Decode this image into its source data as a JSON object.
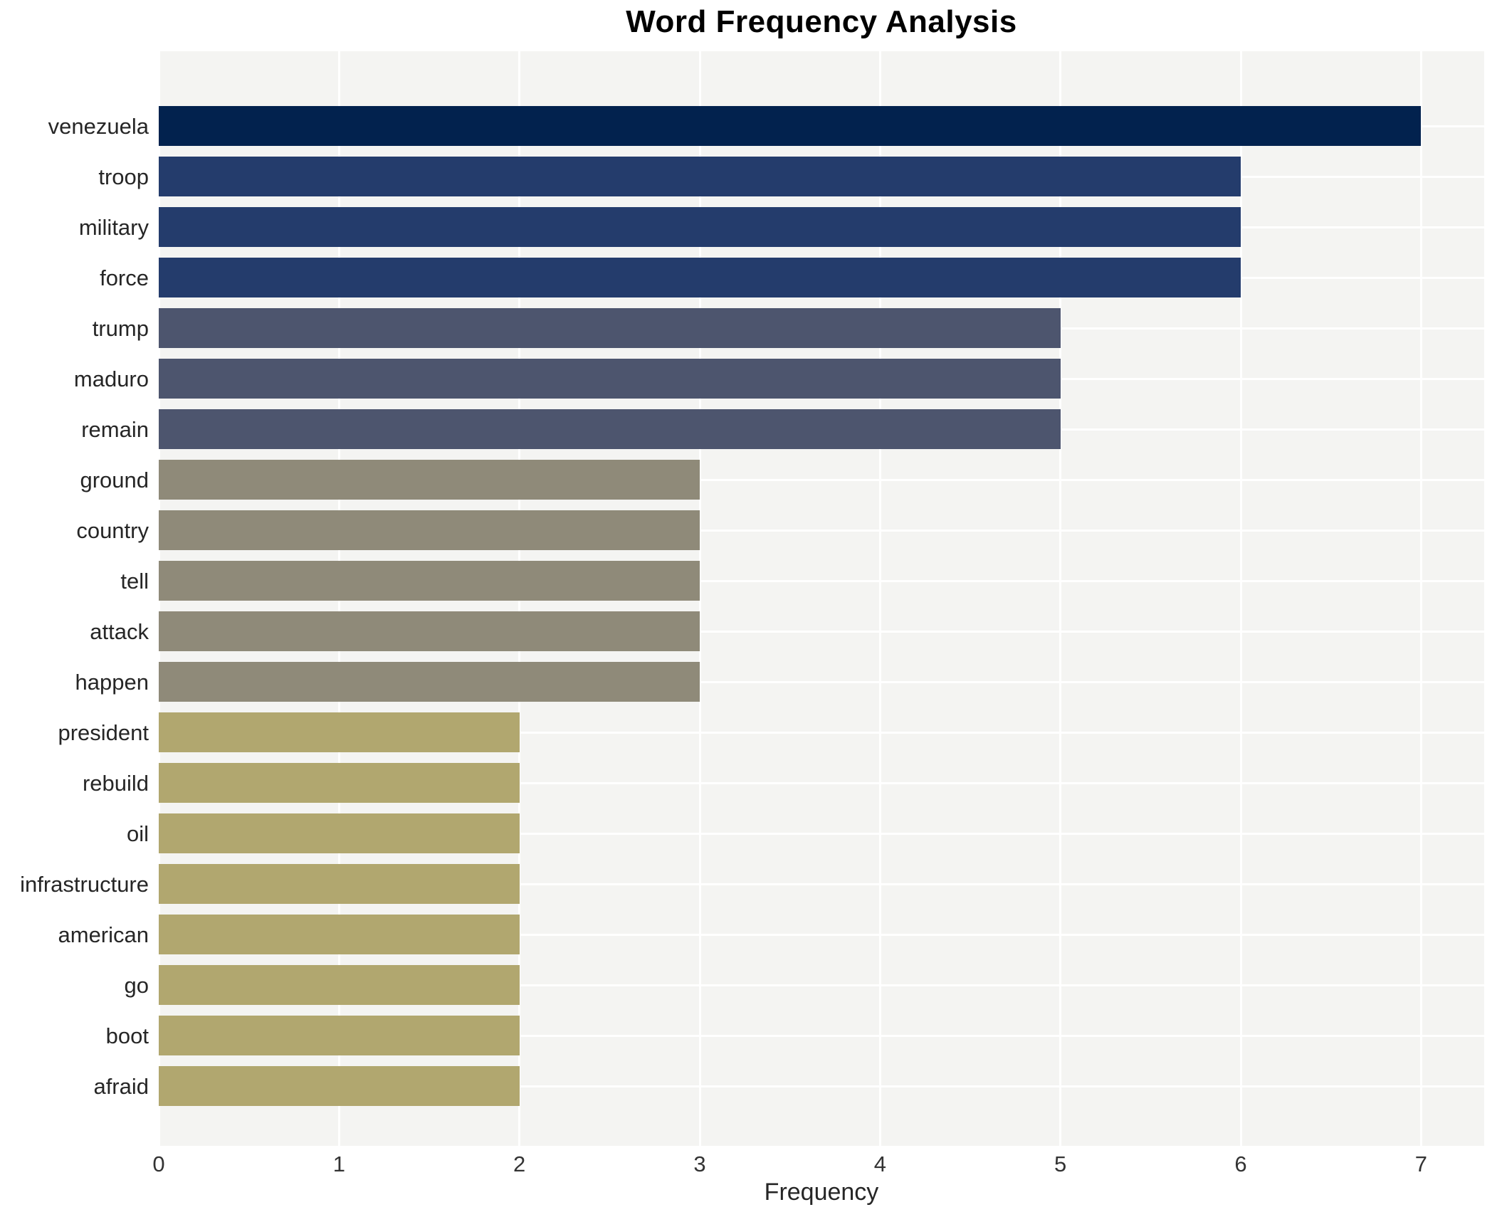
{
  "figure": {
    "background": "#ffffff",
    "plot_background": "#f4f4f2",
    "grid_color": "#ffffff",
    "axis_text_color": "#333333",
    "label_text_color": "#262626",
    "title_color": "#000000"
  },
  "chart_data": {
    "type": "bar",
    "orientation": "horizontal",
    "title": "Word Frequency Analysis",
    "xlabel": "Frequency",
    "ylabel": "",
    "categories": [
      "venezuela",
      "troop",
      "military",
      "force",
      "trump",
      "maduro",
      "remain",
      "ground",
      "country",
      "tell",
      "attack",
      "happen",
      "president",
      "rebuild",
      "oil",
      "infrastructure",
      "american",
      "go",
      "boot",
      "afraid"
    ],
    "values": [
      7,
      6,
      6,
      6,
      5,
      5,
      5,
      3,
      3,
      3,
      3,
      3,
      2,
      2,
      2,
      2,
      2,
      2,
      2,
      2
    ],
    "colors": [
      "#02224e",
      "#243c6c",
      "#243c6c",
      "#243c6c",
      "#4d556e",
      "#4d556e",
      "#4d556e",
      "#8f8a79",
      "#8f8a79",
      "#8f8a79",
      "#8f8a79",
      "#8f8a79",
      "#b1a76f",
      "#b1a76f",
      "#b1a76f",
      "#b1a76f",
      "#b1a76f",
      "#b1a76f",
      "#b1a76f",
      "#b1a76f"
    ],
    "xticks": [
      0,
      1,
      2,
      3,
      4,
      5,
      6,
      7
    ],
    "xlim": [
      0,
      7.35
    ],
    "grid": true,
    "legend": false
  }
}
